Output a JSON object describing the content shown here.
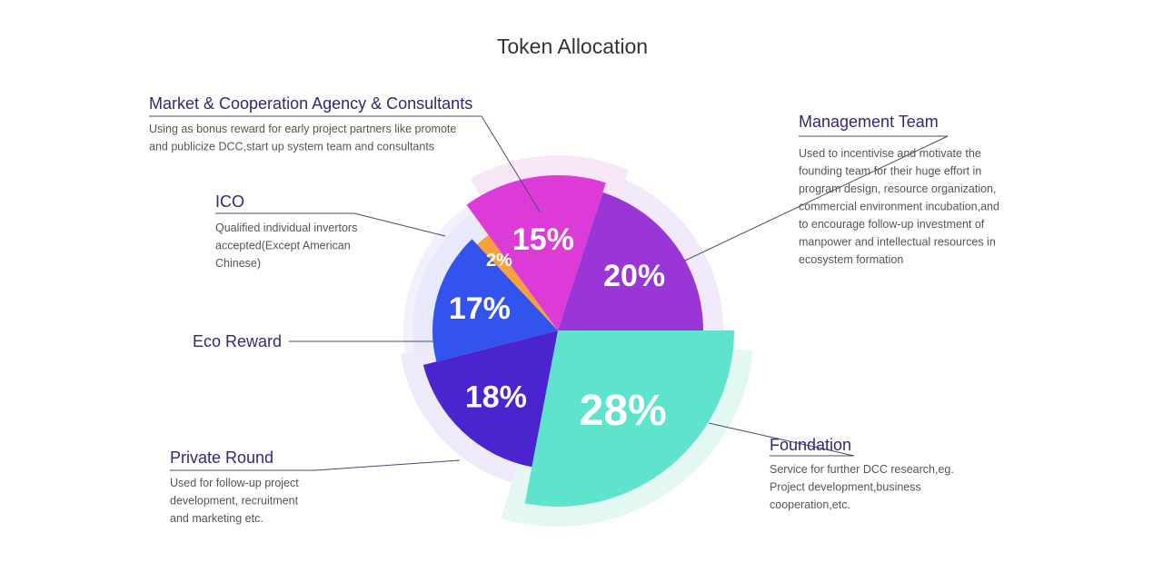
{
  "chart_data": {
    "type": "pie",
    "title": "Token  Allocation",
    "slices": [
      {
        "label": "Foundation",
        "value": 28,
        "display": "28%",
        "color": "#5ee3cd",
        "desc": [
          "Service for further DCC research,eg.",
          "Project development,business",
          "cooperation,etc."
        ]
      },
      {
        "label": "Private Round",
        "value": 18,
        "display": "18%",
        "color": "#4a25cf",
        "desc": [
          "Used for follow-up project",
          "development, recruitment",
          "and marketing etc."
        ]
      },
      {
        "label": "Eco Reward",
        "value": 17,
        "display": "17%",
        "color": "#3253ee",
        "desc": []
      },
      {
        "label": "ICO",
        "value": 2,
        "display": "2%",
        "color": "#f6a13d",
        "desc": [
          "Qualified individual invertors",
          "accepted(Except American",
          "Chinese)"
        ]
      },
      {
        "label": "Market & Cooperation Agency & Consultants",
        "value": 15,
        "display": "15%",
        "color": "#dd3bd8",
        "desc": [
          "Using as bonus reward for early project partners like promote",
          "and publicize DCC,start up system team and consultants"
        ]
      },
      {
        "label": "Management Team",
        "value": 20,
        "display": "20%",
        "color": "#9a35d6",
        "desc": [
          "Used to incentivise and motivate the",
          "founding team for their huge effort in",
          "program design, resource organization,",
          "commercial environment incubation,and",
          "to encourage follow-up investment of",
          "manpower and intellectual resources in",
          "ecosystem formation"
        ]
      }
    ]
  }
}
